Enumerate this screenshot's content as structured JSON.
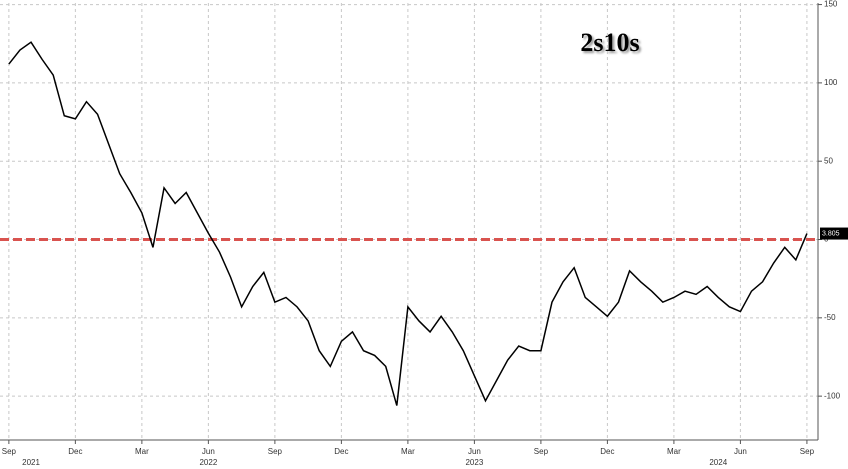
{
  "chart_data": {
    "type": "line",
    "title": "2s10s",
    "x": [
      0,
      0.5,
      1,
      1.5,
      2,
      2.5,
      3,
      3.5,
      4,
      4.5,
      5,
      5.5,
      6,
      6.5,
      7,
      7.5,
      8,
      8.5,
      9,
      9.5,
      10,
      10.5,
      11,
      11.5,
      12,
      12.5,
      13,
      13.5,
      14,
      14.5,
      15,
      15.5,
      16,
      16.5,
      17,
      17.5,
      18,
      18.5,
      19,
      19.5,
      20,
      20.5,
      21,
      21.5,
      22,
      22.5,
      23,
      23.5,
      24,
      24.5,
      25,
      25.5,
      26,
      26.5,
      27,
      27.5,
      28,
      28.5,
      29,
      29.5,
      30,
      30.5,
      31,
      31.5,
      32,
      32.5,
      33,
      33.5,
      34,
      34.5,
      35,
      35.5,
      36
    ],
    "series": [
      {
        "color": "#000000",
        "values": [
          112,
          121,
          126,
          115,
          105,
          79,
          77,
          88,
          80,
          61,
          42,
          30,
          17,
          -5,
          33,
          23,
          30,
          17,
          4,
          -8,
          -24,
          -43,
          -30,
          -21,
          -40,
          -37,
          -43,
          -52,
          -71,
          -81,
          -65,
          -59,
          -71,
          -74,
          -81,
          -106,
          -43,
          -52,
          -59,
          -49,
          -59,
          -71,
          -87,
          -103,
          -90,
          -77,
          -68,
          -71,
          -71,
          -40,
          -27,
          -18,
          -37,
          -43,
          -49,
          -40,
          -20,
          -27,
          -33,
          -40,
          -37,
          -33,
          -35,
          -30,
          -37,
          -43,
          -46,
          -33,
          -27,
          -15,
          -5,
          -13,
          3.805
        ]
      }
    ],
    "reference_line": {
      "value": 0,
      "color": "#d9534f"
    },
    "xlim": [
      -0.4,
      36.5
    ],
    "xticks": [
      {
        "value": 0,
        "label": "Sep"
      },
      {
        "value": 3,
        "label": "Dec"
      },
      {
        "value": 6,
        "label": "Mar"
      },
      {
        "value": 9,
        "label": "Jun"
      },
      {
        "value": 12,
        "label": "Sep"
      },
      {
        "value": 15,
        "label": "Dec"
      },
      {
        "value": 18,
        "label": "Mar"
      },
      {
        "value": 21,
        "label": "Jun"
      },
      {
        "value": 24,
        "label": "Sep"
      },
      {
        "value": 27,
        "label": "Dec"
      },
      {
        "value": 30,
        "label": "Mar"
      },
      {
        "value": 33,
        "label": "Jun"
      },
      {
        "value": 36,
        "label": "Sep"
      }
    ],
    "year_labels": [
      {
        "value": 1,
        "label": "2021"
      },
      {
        "value": 9,
        "label": "2022"
      },
      {
        "value": 21,
        "label": "2023"
      },
      {
        "value": 32,
        "label": "2024"
      }
    ],
    "ylim": [
      -128,
      151
    ],
    "yticks": [
      -100,
      -50,
      0,
      50,
      100,
      150
    ],
    "grid": true
  }
}
